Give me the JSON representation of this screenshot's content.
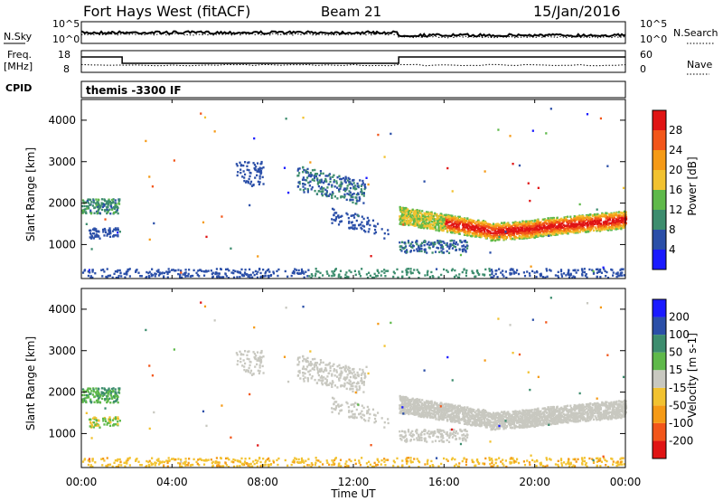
{
  "header": {
    "station": "Fort Hays West (fitACF)",
    "beam": "Beam 21",
    "date": "15/Jan/2016"
  },
  "side_labels": {
    "nsky": "N.Sky",
    "nsearch": "N.Search",
    "freq": "Freq.",
    "freq_unit": "[MHz]",
    "nave": "Nave",
    "cpid": "CPID"
  },
  "strip_ticks": {
    "noise_left_top": "10^5",
    "noise_left_bottom": "10^0",
    "noise_right_top": "10^5",
    "noise_right_bottom": "10^0",
    "freq_left_top": "18",
    "freq_left_bottom": "8",
    "nave_right_top": "60",
    "nave_right_bottom": "0"
  },
  "cpid_text": "themis -3300 IF",
  "x_axis": {
    "label": "Time UT",
    "ticks": [
      "00:00",
      "04:00",
      "08:00",
      "12:00",
      "16:00",
      "20:00",
      "00:00"
    ]
  },
  "chart_data": [
    {
      "type": "heatmap",
      "name": "power",
      "ylabel": "Slant Range [km]",
      "yticks": [
        "1000",
        "2000",
        "3000",
        "4000"
      ],
      "colorbar_label": "Power [dB]",
      "colorbar_ticks": [
        "4",
        "8",
        "12",
        "16",
        "20",
        "24",
        "28"
      ],
      "colors": [
        "#1a1aff",
        "#2b4fa8",
        "#3d8d6e",
        "#5fb94a",
        "#f2c230",
        "#f59a16",
        "#f2561a",
        "#e01414"
      ]
    },
    {
      "type": "heatmap",
      "name": "velocity",
      "ylabel": "Slant Range [km]",
      "yticks": [
        "1000",
        "2000",
        "3000",
        "4000"
      ],
      "colorbar_label": "Velocity [m s-1]",
      "colorbar_ticks": [
        "200",
        "100",
        "50",
        "15",
        "-15",
        "-50",
        "-100",
        "-200"
      ],
      "colors": [
        "#1a1aff",
        "#2b4fa8",
        "#3d8d6e",
        "#5fb94a",
        "#c8c8c0",
        "#f2c230",
        "#f59a16",
        "#f2561a",
        "#e01414"
      ]
    }
  ]
}
